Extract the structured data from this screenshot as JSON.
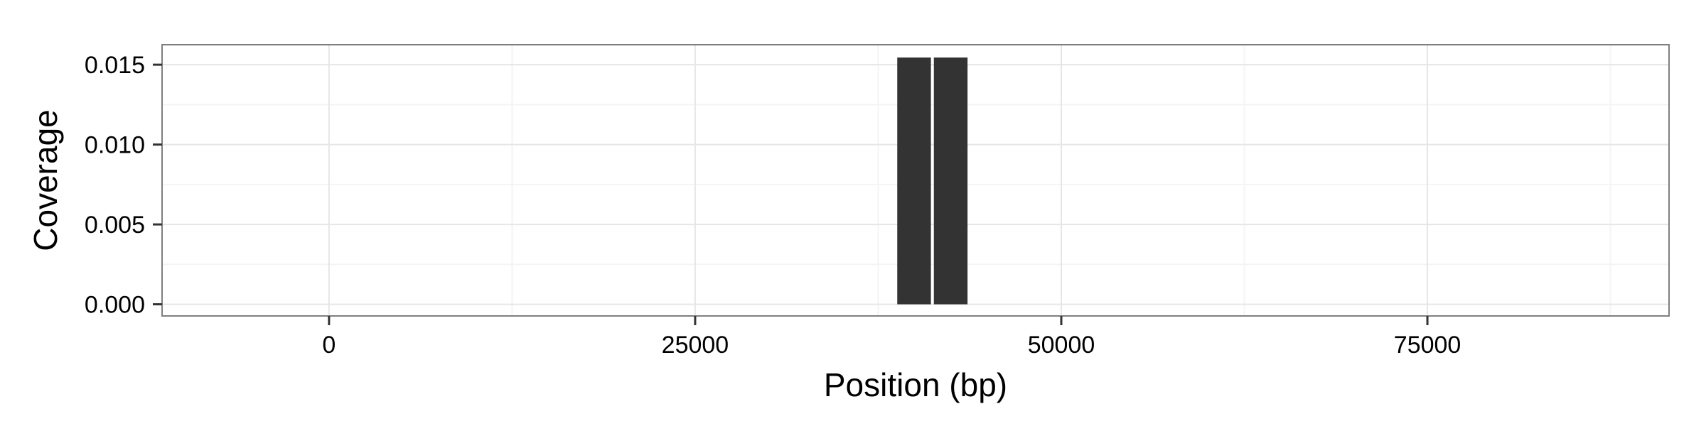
{
  "chart_data": {
    "type": "bar",
    "title": "",
    "xlabel": "Position (bp)",
    "ylabel": "Coverage",
    "xlim": [
      -11400,
      91500
    ],
    "ylim": [
      -0.00073,
      0.01625
    ],
    "x_ticks": [
      0,
      25000,
      50000,
      75000
    ],
    "x_tick_labels": [
      "0",
      "25000",
      "50000",
      "75000"
    ],
    "y_ticks": [
      0.0,
      0.005,
      0.01,
      0.015
    ],
    "y_tick_labels": [
      "0.000",
      "0.005",
      "0.010",
      "0.015"
    ],
    "bars": [
      {
        "x_start": 38800,
        "x_end": 41100,
        "value": 0.01545
      },
      {
        "x_start": 41300,
        "x_end": 43600,
        "value": 0.01545
      }
    ],
    "grid": true,
    "legend": "none",
    "colors": {
      "bar": "#333333",
      "grid_major": "#e6e6e6",
      "grid_minor": "#f4f4f4",
      "panel_border": "#7f7f7f"
    }
  }
}
